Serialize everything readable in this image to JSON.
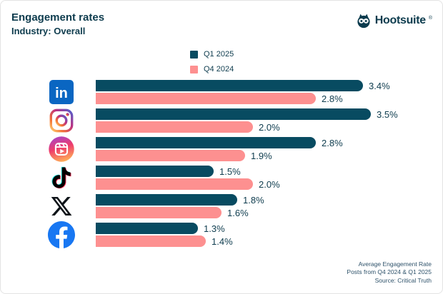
{
  "page": {
    "title": "Engagement rates",
    "subtitle": "Industry: Overall",
    "brand": "Hootsuite",
    "brand_reg": "®"
  },
  "colors": {
    "q1_2025": "#084B61",
    "q4_2024": "#FD9090",
    "text": "#0e3c4e",
    "footer_text": "#2e526a"
  },
  "legend": {
    "items": [
      {
        "label": "Q1 2025",
        "color": "#084B61"
      },
      {
        "label": "Q4 2024",
        "color": "#FD9090"
      }
    ]
  },
  "icons": {
    "brand": "hootsuite-owl-icon",
    "rows": [
      "linkedin-icon",
      "instagram-icon",
      "instagram-reels-icon",
      "tiktok-icon",
      "x-icon",
      "facebook-icon"
    ]
  },
  "chart_data": {
    "type": "bar",
    "orientation": "horizontal",
    "title": "Engagement rates",
    "subtitle": "Industry: Overall",
    "categories": [
      "LinkedIn",
      "Instagram",
      "Instagram Reels",
      "TikTok",
      "X",
      "Facebook"
    ],
    "series": [
      {
        "name": "Q1 2025",
        "color": "#084B61",
        "values": [
          3.4,
          3.5,
          2.8,
          1.5,
          1.8,
          1.3
        ]
      },
      {
        "name": "Q4 2024",
        "color": "#FD9090",
        "values": [
          2.8,
          2.0,
          1.9,
          2.0,
          1.6,
          1.4
        ]
      }
    ],
    "value_suffix": "%",
    "xlim": [
      0,
      3.5
    ],
    "grid": false,
    "legend_position": "top-center",
    "value_labels": "end-of-bar"
  },
  "footer": {
    "line1": "Average Engagement Rate",
    "line2": "Posts from Q4 2024 & Q1 2025",
    "line3": "Source: Critical Truth"
  }
}
